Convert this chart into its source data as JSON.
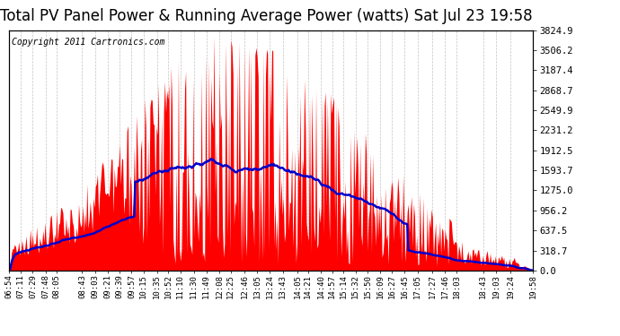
{
  "title": "Total PV Panel Power & Running Average Power (watts) Sat Jul 23 19:58",
  "copyright": "Copyright 2011 Cartronics.com",
  "bg_color": "#ffffff",
  "plot_bg_color": "#ffffff",
  "grid_color": "#aaaaaa",
  "bar_color": "#ff0000",
  "avg_color": "#0000cc",
  "yticks": [
    0.0,
    318.7,
    637.5,
    956.2,
    1275.0,
    1593.7,
    1912.5,
    2231.2,
    2549.9,
    2868.7,
    3187.4,
    3506.2,
    3824.9
  ],
  "ymax": 3824.9,
  "x_labels": [
    "06:54",
    "07:11",
    "07:29",
    "07:48",
    "08:05",
    "08:43",
    "09:03",
    "09:21",
    "09:39",
    "09:57",
    "10:15",
    "10:35",
    "10:52",
    "11:10",
    "11:30",
    "11:49",
    "12:08",
    "12:25",
    "12:46",
    "13:05",
    "13:24",
    "13:43",
    "14:05",
    "14:21",
    "14:40",
    "14:57",
    "15:14",
    "15:32",
    "15:50",
    "16:09",
    "16:27",
    "16:45",
    "17:05",
    "17:27",
    "17:46",
    "18:03",
    "18:43",
    "19:03",
    "19:24",
    "19:58"
  ],
  "title_fontsize": 12,
  "copyright_fontsize": 7,
  "tick_fontsize": 6.5,
  "ytick_fontsize": 7.5,
  "avg_linewidth": 1.8
}
